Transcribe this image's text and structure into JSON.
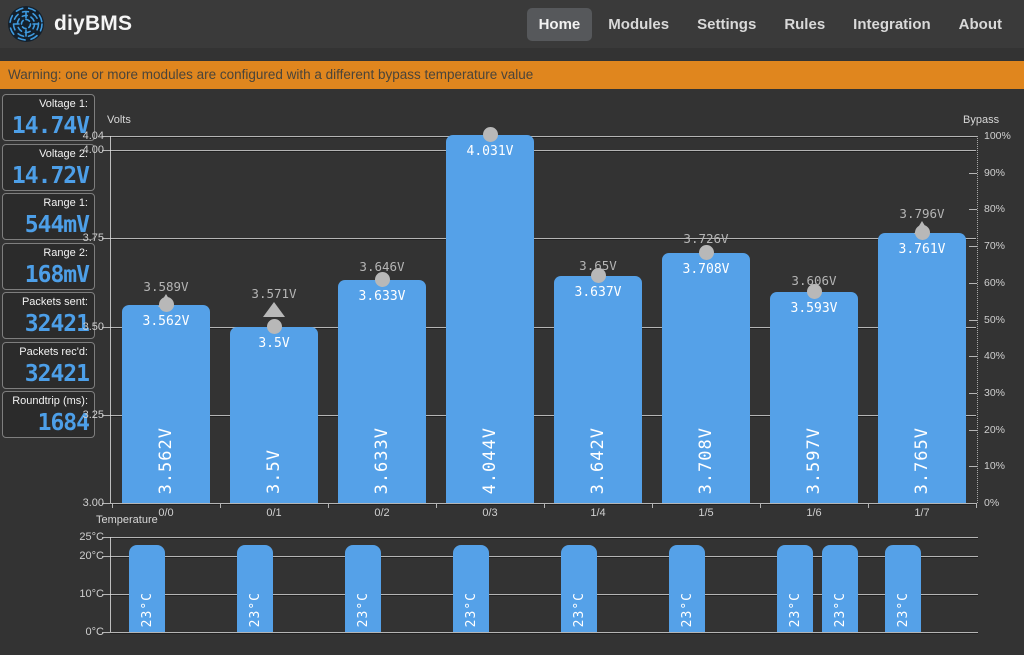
{
  "header": {
    "brand": "diyBMS",
    "nav": [
      {
        "label": "Home",
        "active": true
      },
      {
        "label": "Modules",
        "active": false
      },
      {
        "label": "Settings",
        "active": false
      },
      {
        "label": "Rules",
        "active": false
      },
      {
        "label": "Integration",
        "active": false
      },
      {
        "label": "About",
        "active": false
      }
    ]
  },
  "warning": {
    "text": "Warning: one or more modules are configured with a different bypass temperature value"
  },
  "sidebar": {
    "stats": [
      {
        "label": "Voltage 1:",
        "value": "14.74V"
      },
      {
        "label": "Voltage 2:",
        "value": "14.72V"
      },
      {
        "label": "Range 1:",
        "value": "544mV"
      },
      {
        "label": "Range 2:",
        "value": "168mV"
      },
      {
        "label": "Packets sent:",
        "value": "32421"
      },
      {
        "label": "Packets rec'd:",
        "value": "32421"
      },
      {
        "label": "Roundtrip (ms):",
        "value": "1684"
      }
    ]
  },
  "colors": {
    "bar_blue": "#55a1e8",
    "stat_blue": "#4d9fe8",
    "marker_gray": "#b8b8b8",
    "warning_bg": "#e0861e"
  },
  "chart_data": [
    {
      "type": "bar",
      "categories": [
        "0/0",
        "0/1",
        "0/2",
        "0/3",
        "1/4",
        "1/5",
        "1/6",
        "1/7"
      ],
      "y_left": {
        "title": "Volts",
        "min": 3.0,
        "max": 4.04,
        "ticks": [
          {
            "v": 3.0,
            "label": "3.00"
          },
          {
            "v": 3.25,
            "label": "3.25"
          },
          {
            "v": 3.5,
            "label": "3.50"
          },
          {
            "v": 3.75,
            "label": "3.75"
          },
          {
            "v": 4.0,
            "label": "4.00"
          },
          {
            "v": 4.04,
            "label": "4.04"
          }
        ]
      },
      "y_right": {
        "title": "Bypass",
        "min": 0,
        "max": 100,
        "ticks": [
          {
            "v": 0,
            "label": "0%"
          },
          {
            "v": 10,
            "label": "10%"
          },
          {
            "v": 20,
            "label": "20%"
          },
          {
            "v": 30,
            "label": "30%"
          },
          {
            "v": 40,
            "label": "40%"
          },
          {
            "v": 50,
            "label": "50%"
          },
          {
            "v": 60,
            "label": "60%"
          },
          {
            "v": 70,
            "label": "70%"
          },
          {
            "v": 80,
            "label": "80%"
          },
          {
            "v": 90,
            "label": "90%"
          },
          {
            "v": 100,
            "label": "100%"
          }
        ]
      },
      "cells": [
        {
          "id": "0/0",
          "voltage": 3.562,
          "bar_label": "3.562V",
          "top_label": "3.562V",
          "marker_value": 3.589,
          "marker_label": "3.589V",
          "marker_style": "droplet"
        },
        {
          "id": "0/1",
          "voltage": 3.5,
          "bar_label": "3.5V",
          "top_label": "3.5V",
          "marker_value": 3.571,
          "marker_label": "3.571V",
          "marker_style": "triangle"
        },
        {
          "id": "0/2",
          "voltage": 3.633,
          "bar_label": "3.633V",
          "top_label": "3.633V",
          "marker_value": 3.646,
          "marker_label": "3.646V",
          "marker_style": "circle"
        },
        {
          "id": "0/3",
          "voltage": 4.044,
          "bar_label": "4.044V",
          "top_label": "4.031V",
          "marker_value": 4.031,
          "marker_label": null,
          "marker_style": "circle"
        },
        {
          "id": "1/4",
          "voltage": 3.642,
          "bar_label": "3.642V",
          "top_label": "3.637V",
          "marker_value": 3.65,
          "marker_label": "3.65V",
          "marker_style": "circle"
        },
        {
          "id": "1/5",
          "voltage": 3.708,
          "bar_label": "3.708V",
          "top_label": "3.708V",
          "marker_value": 3.726,
          "marker_label": "3.726V",
          "marker_style": "circle"
        },
        {
          "id": "1/6",
          "voltage": 3.597,
          "bar_label": "3.597V",
          "top_label": "3.593V",
          "marker_value": 3.606,
          "marker_label": "3.606V",
          "marker_style": "circle"
        },
        {
          "id": "1/7",
          "voltage": 3.765,
          "bar_label": "3.765V",
          "top_label": "3.761V",
          "marker_value": 3.796,
          "marker_label": "3.796V",
          "marker_style": "droplet"
        }
      ]
    },
    {
      "type": "bar",
      "title": "Temperature",
      "y": {
        "min": 0,
        "max": 25,
        "ticks": [
          {
            "v": 25,
            "label": "25°C"
          },
          {
            "v": 20,
            "label": "20°C"
          },
          {
            "v": 10,
            "label": "10°C"
          },
          {
            "v": 0,
            "label": "0°C"
          }
        ]
      },
      "bars": [
        {
          "cat": "0/0",
          "slot": 0,
          "value": 23,
          "label": "23°C"
        },
        {
          "cat": "0/1",
          "slot": 0,
          "value": 23,
          "label": "23°C"
        },
        {
          "cat": "0/2",
          "slot": 0,
          "value": 23,
          "label": "23°C"
        },
        {
          "cat": "0/3",
          "slot": 0,
          "value": 23,
          "label": "23°C"
        },
        {
          "cat": "1/4",
          "slot": 0,
          "value": 23,
          "label": "23°C"
        },
        {
          "cat": "1/5",
          "slot": 0,
          "value": 23,
          "label": "23°C"
        },
        {
          "cat": "1/6",
          "slot": 0,
          "value": 23,
          "label": "23°C"
        },
        {
          "cat": "1/6",
          "slot": 1,
          "value": 23,
          "label": "23°C"
        },
        {
          "cat": "1/7",
          "slot": 0,
          "value": 23,
          "label": "23°C"
        }
      ]
    }
  ]
}
